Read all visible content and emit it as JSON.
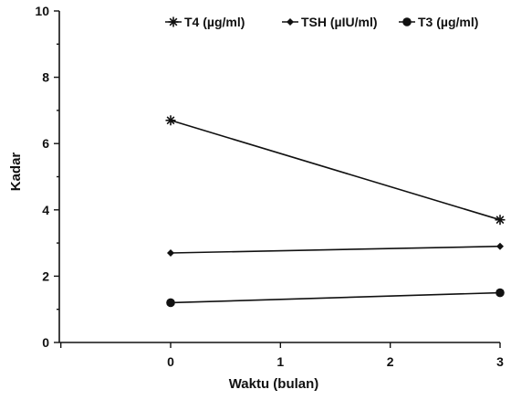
{
  "chart_data": {
    "type": "line",
    "title": "",
    "xlabel": "Waktu (bulan)",
    "ylabel": "Kadar",
    "xlim": [
      -1,
      3
    ],
    "ylim": [
      0,
      10
    ],
    "x_ticks": [
      0,
      1,
      2,
      3
    ],
    "y_ticks": [
      0,
      2,
      4,
      6,
      8,
      10
    ],
    "grid": false,
    "legend_position": "top-right",
    "color": "#111111",
    "series": [
      {
        "name": "T4 (µg/ml)",
        "marker": "asterisk",
        "x": [
          0,
          3
        ],
        "values": [
          6.7,
          3.7
        ]
      },
      {
        "name": "TSH (µIU/ml)",
        "marker": "diamond",
        "x": [
          0,
          3
        ],
        "values": [
          2.7,
          2.9
        ]
      },
      {
        "name": "T3 (µg/ml)",
        "marker": "circle",
        "x": [
          0,
          3
        ],
        "values": [
          1.2,
          1.5
        ]
      }
    ]
  }
}
